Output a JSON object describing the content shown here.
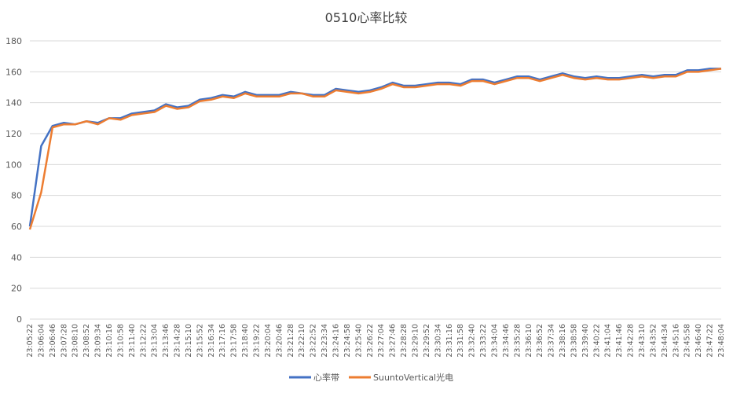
{
  "chart_data": {
    "type": "line",
    "title": "0510心率比较",
    "categories": [
      "23:05:22",
      "23:06:04",
      "23:06:46",
      "23:07:28",
      "23:08:10",
      "23:08:52",
      "23:09:34",
      "23:10:16",
      "23:10:58",
      "23:11:40",
      "23:12:22",
      "23:13:04",
      "23:13:46",
      "23:14:28",
      "23:15:10",
      "23:15:52",
      "23:16:34",
      "23:17:16",
      "23:17:58",
      "23:18:40",
      "23:19:22",
      "23:20:04",
      "23:20:46",
      "23:21:28",
      "23:22:10",
      "23:22:52",
      "23:23:34",
      "23:24:16",
      "23:24:58",
      "23:25:40",
      "23:26:22",
      "23:27:04",
      "23:27:46",
      "23:28:28",
      "23:29:10",
      "23:29:52",
      "23:30:34",
      "23:31:16",
      "23:31:58",
      "23:32:40",
      "23:33:22",
      "23:34:04",
      "23:34:46",
      "23:35:28",
      "23:36:10",
      "23:36:52",
      "23:37:34",
      "23:38:16",
      "23:38:58",
      "23:39:40",
      "23:40:22",
      "23:41:04",
      "23:41:46",
      "23:42:28",
      "23:43:10",
      "23:43:52",
      "23:44:34",
      "23:45:16",
      "23:45:58",
      "23:46:40",
      "23:47:22",
      "23:48:04"
    ],
    "series": [
      {
        "name": "心率带",
        "color": "#4472c4",
        "values": [
          60,
          112,
          125,
          127,
          126,
          128,
          127,
          130,
          130,
          133,
          134,
          135,
          139,
          137,
          138,
          142,
          143,
          145,
          144,
          147,
          145,
          145,
          145,
          147,
          146,
          145,
          145,
          149,
          148,
          147,
          148,
          150,
          153,
          151,
          151,
          152,
          153,
          153,
          152,
          155,
          155,
          153,
          155,
          157,
          157,
          155,
          157,
          159,
          157,
          156,
          157,
          156,
          156,
          157,
          158,
          157,
          158,
          158,
          161,
          161,
          162,
          162
        ]
      },
      {
        "name": "SuuntoVertical光电",
        "color": "#ed7d31",
        "values": [
          58,
          82,
          124,
          126,
          126,
          128,
          126,
          130,
          129,
          132,
          133,
          134,
          138,
          136,
          137,
          141,
          142,
          144,
          143,
          146,
          144,
          144,
          144,
          146,
          146,
          144,
          144,
          148,
          147,
          146,
          147,
          149,
          152,
          150,
          150,
          151,
          152,
          152,
          151,
          154,
          154,
          152,
          154,
          156,
          156,
          154,
          156,
          158,
          156,
          155,
          156,
          155,
          155,
          156,
          157,
          156,
          157,
          157,
          160,
          160,
          161,
          162
        ]
      }
    ],
    "ylim": [
      0,
      180
    ],
    "yticks": [
      0,
      20,
      40,
      60,
      80,
      100,
      120,
      140,
      160,
      180
    ],
    "grid": true
  }
}
